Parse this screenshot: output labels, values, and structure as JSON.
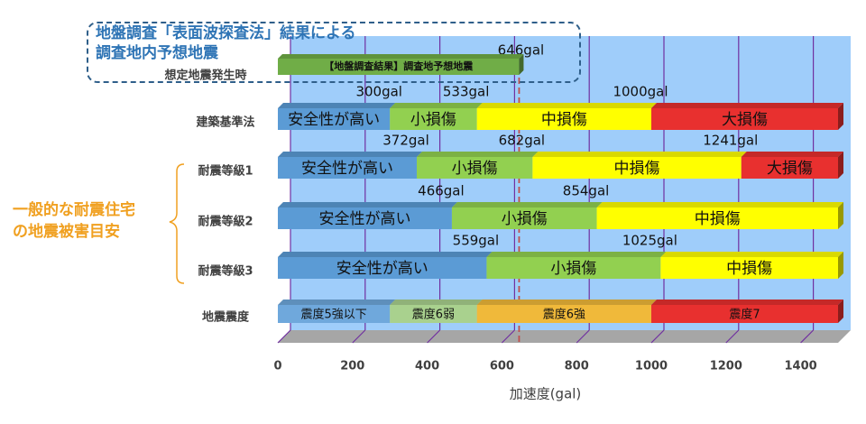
{
  "callout": {
    "line1": "地盤調査「表面波探査法」結果による",
    "line2": "調査地内予想地震"
  },
  "annotation": {
    "line1": "一般的な耐震住宅",
    "line2": "の地震被害目安"
  },
  "chart_data": {
    "type": "bar",
    "orientation": "horizontal",
    "stacked": true,
    "xlabel": "加速度(gal)",
    "xlim": [
      0,
      1500
    ],
    "xticks": [
      0,
      200,
      400,
      600,
      800,
      1000,
      1200,
      1400
    ],
    "grid": true,
    "reference_line": {
      "value": 646,
      "label": "646gal",
      "style": "dashed",
      "color": "#c0504d"
    },
    "rows": [
      {
        "name": "想定地震発生時",
        "segments": [
          {
            "label": "【地盤調査結果】調査地予想地震",
            "start": 0,
            "end": 646,
            "color": "#70ad47",
            "style": "small"
          }
        ],
        "value_labels": []
      },
      {
        "name": "建築基準法",
        "segments": [
          {
            "label": "安全性が高い",
            "start": 0,
            "end": 300,
            "color": "#5b9bd5"
          },
          {
            "label": "小損傷",
            "start": 300,
            "end": 533,
            "color": "#92d050"
          },
          {
            "label": "中損傷",
            "start": 533,
            "end": 1000,
            "color": "#ffff00"
          },
          {
            "label": "大損傷",
            "start": 1000,
            "end": 1500,
            "color": "#e8302f"
          }
        ],
        "value_labels": [
          {
            "text": "300gal",
            "value": 300
          },
          {
            "text": "533gal",
            "value": 533
          },
          {
            "text": "1000gal",
            "value": 1000
          }
        ]
      },
      {
        "name": "耐震等級1",
        "segments": [
          {
            "label": "安全性が高い",
            "start": 0,
            "end": 372,
            "color": "#5b9bd5"
          },
          {
            "label": "小損傷",
            "start": 372,
            "end": 682,
            "color": "#92d050"
          },
          {
            "label": "中損傷",
            "start": 682,
            "end": 1241,
            "color": "#ffff00"
          },
          {
            "label": "大損傷",
            "start": 1241,
            "end": 1500,
            "color": "#e8302f"
          }
        ],
        "value_labels": [
          {
            "text": "372gal",
            "value": 372
          },
          {
            "text": "682gal",
            "value": 682
          },
          {
            "text": "1241gal",
            "value": 1241
          }
        ]
      },
      {
        "name": "耐震等級2",
        "segments": [
          {
            "label": "安全性が高い",
            "start": 0,
            "end": 466,
            "color": "#5b9bd5"
          },
          {
            "label": "小損傷",
            "start": 466,
            "end": 854,
            "color": "#92d050"
          },
          {
            "label": "中損傷",
            "start": 854,
            "end": 1500,
            "color": "#ffff00"
          }
        ],
        "value_labels": [
          {
            "text": "466gal",
            "value": 466
          },
          {
            "text": "854gal",
            "value": 854
          }
        ]
      },
      {
        "name": "耐震等級3",
        "segments": [
          {
            "label": "安全性が高い",
            "start": 0,
            "end": 559,
            "color": "#5b9bd5"
          },
          {
            "label": "小損傷",
            "start": 559,
            "end": 1025,
            "color": "#92d050"
          },
          {
            "label": "中損傷",
            "start": 1025,
            "end": 1500,
            "color": "#ffff00"
          }
        ],
        "value_labels": [
          {
            "text": "559gal",
            "value": 559
          },
          {
            "text": "1025gal",
            "value": 1025
          }
        ]
      },
      {
        "name": "地震震度",
        "segments": [
          {
            "label": "震度5強以下",
            "start": 0,
            "end": 300,
            "color": "#6fa8dc",
            "style": "small"
          },
          {
            "label": "震度6弱",
            "start": 300,
            "end": 533,
            "color": "#a9d18e",
            "style": "small"
          },
          {
            "label": "震度6強",
            "start": 533,
            "end": 1000,
            "color": "#f0b93a",
            "style": "small"
          },
          {
            "label": "震度7",
            "start": 1000,
            "end": 1500,
            "color": "#e8302f",
            "style": "small"
          }
        ],
        "value_labels": []
      }
    ]
  }
}
